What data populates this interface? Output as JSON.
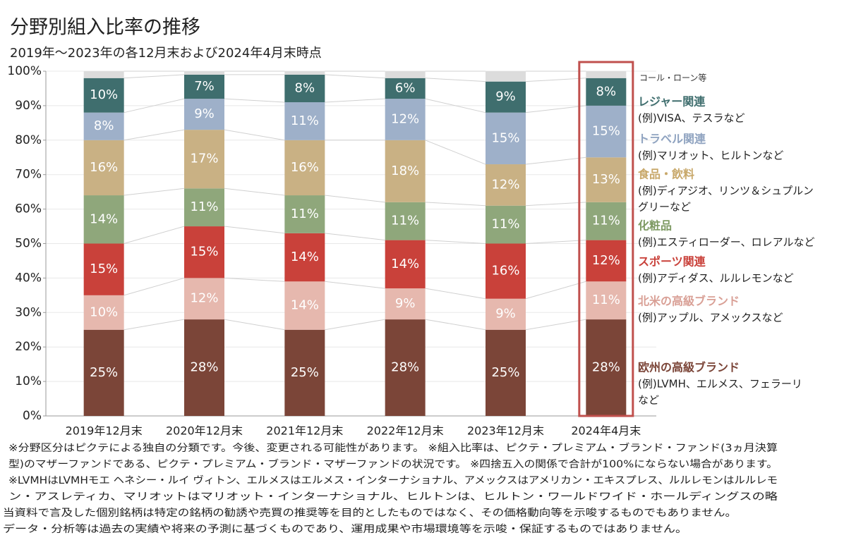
{
  "chart_data": {
    "type": "stacked_bar",
    "title": "分野別組入比率の推移",
    "subtitle": "2019年～2023年の各12月末および2024年4月末時点",
    "categories": [
      "2019年12月末",
      "2020年12月末",
      "2021年12月末",
      "2022年12月末",
      "2023年12月末",
      "2024年4月末"
    ],
    "ylim": [
      0,
      100
    ],
    "yticks": [
      {
        "value": 0,
        "label": "0%"
      },
      {
        "value": 10,
        "label": "10%"
      },
      {
        "value": 20,
        "label": "20%"
      },
      {
        "value": 30,
        "label": "30%"
      },
      {
        "value": 40,
        "label": "40%"
      },
      {
        "value": 50,
        "label": "50%"
      },
      {
        "value": 60,
        "label": "60%"
      },
      {
        "value": 70,
        "label": "70%"
      },
      {
        "value": 80,
        "label": "80%"
      },
      {
        "value": 90,
        "label": "90%"
      },
      {
        "value": 100,
        "label": "100%"
      }
    ],
    "grid": true,
    "highlight_color": "#c0504d",
    "series": [
      {
        "name": "欧州の高級ブランド",
        "color": "#7b4538",
        "text_color": "#7b4538",
        "note": [
          "(例)LVMH、エルメス、フェラーリ",
          "など"
        ],
        "values": [
          25,
          28,
          25,
          28,
          25,
          28
        ],
        "value_labels": [
          "25%",
          "28%",
          "25%",
          "28%",
          "25%",
          "28%"
        ]
      },
      {
        "name": "北米の高級ブランド",
        "color": "#e6b8ae",
        "text_color": "#d9a096",
        "note": [
          "(例)アップル、アメックスなど"
        ],
        "values": [
          10,
          12,
          14,
          9,
          9,
          11
        ],
        "value_labels": [
          "10%",
          "12%",
          "14%",
          "9%",
          "9%",
          "11%"
        ]
      },
      {
        "name": "スポーツ関連",
        "color": "#c9413a",
        "text_color": "#c9413a",
        "note": [
          "(例)アディダス、ルルレモンなど"
        ],
        "values": [
          15,
          15,
          14,
          14,
          16,
          12
        ],
        "value_labels": [
          "15%",
          "15%",
          "14%",
          "14%",
          "16%",
          "12%"
        ]
      },
      {
        "name": "化粧品",
        "color": "#8fa77b",
        "text_color": "#7e9a63",
        "note": [
          "(例)エスティローダー、ロレアルなど"
        ],
        "values": [
          14,
          11,
          11,
          11,
          11,
          11
        ],
        "value_labels": [
          "14%",
          "11%",
          "11%",
          "11%",
          "11%",
          "11%"
        ]
      },
      {
        "name": "食品・飲料",
        "color": "#c9b184",
        "text_color": "#c8a86a",
        "note": [
          "(例)ディアジオ、リンツ＆シュプルン",
          "グリーなど"
        ],
        "values": [
          16,
          17,
          16,
          18,
          12,
          13
        ],
        "value_labels": [
          "16%",
          "17%",
          "16%",
          "18%",
          "12%",
          "13%"
        ]
      },
      {
        "name": "トラベル関連",
        "color": "#9eb0c9",
        "text_color": "#8fa3c0",
        "note": [
          "(例)マリオット、ヒルトンなど"
        ],
        "values": [
          8,
          9,
          11,
          12,
          15,
          15
        ],
        "value_labels": [
          "8%",
          "9%",
          "11%",
          "12%",
          "15%",
          "15%"
        ]
      },
      {
        "name": "レジャー関連",
        "color": "#3f6e6e",
        "text_color": "#3f6e6e",
        "note": [
          "(例)VISA、テスラなど"
        ],
        "values": [
          10,
          7,
          8,
          6,
          9,
          8
        ],
        "value_labels": [
          "10%",
          "7%",
          "8%",
          "6%",
          "9%",
          "8%"
        ]
      },
      {
        "name": "コール・ローン等",
        "color": "#dcdcdc",
        "text_color": "#333333",
        "values": [
          2,
          1,
          1,
          2,
          3,
          2
        ]
      }
    ],
    "footnotes": [
      "※分野区分はピクテによる独自の分類です。今後、変更される可能性があります。 ※組入比率は、ピクテ・プレミアム・ブランド・ファンド(3ヵ月決算",
      "型)のマザーファンドである、ピクテ・プレミアム・ブランド・マザーファンドの状況です。 ※四捨五入の関係で合計が100%にならない場合があります。",
      "※LVMHはLVMHモエ ヘネシー・ルイ ヴィトン、エルメスはエルメス・インターナショナル、アメックスはアメリカン・エキスプレス、ルルレモンはルルレモ",
      "ン・アスレティカ、マリオットはマリオット・インターナショナル、ヒルトンは、ヒルトン・ワールドワイド・ホールディングスの略",
      "当資料で言及した個別銘柄は特定の銘柄の勧誘や売買の推奨等を目的としたものではなく、その価格動向等を示唆するものでもありません。",
      "データ・分析等は過去の実績や将来の予測に基づくものであり、運用成果や市場環境等を示唆・保証するものではありません。"
    ]
  }
}
